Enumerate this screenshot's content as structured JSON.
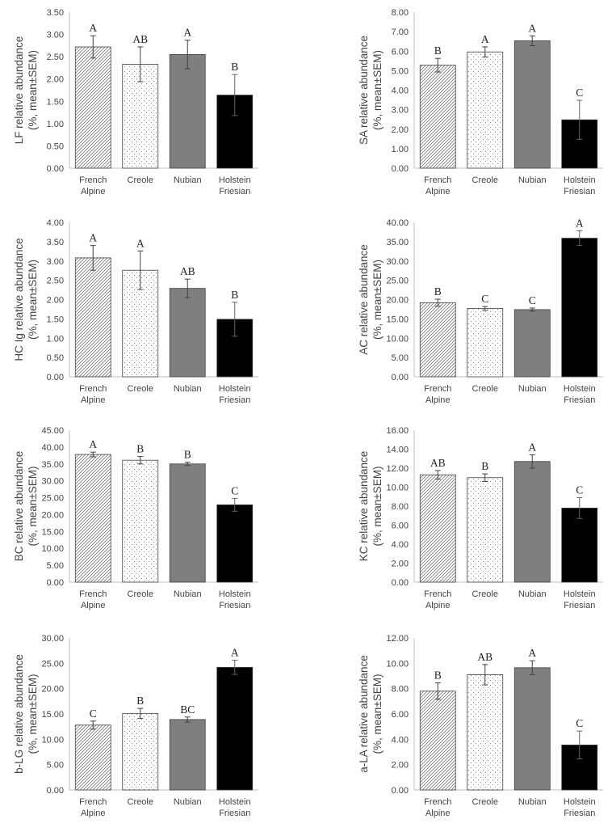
{
  "chart_data": [
    {
      "type": "bar",
      "ylabel_line1": "LF relative abundance",
      "ylabel_line2": "(%, mean±SEM)",
      "categories": [
        [
          "French",
          "Alpine"
        ],
        [
          "Creole"
        ],
        [
          "Nubian"
        ],
        [
          "Holstein",
          "Friesian"
        ]
      ],
      "values": [
        2.72,
        2.33,
        2.55,
        1.64
      ],
      "errors": [
        0.25,
        0.39,
        0.32,
        0.46
      ],
      "letters": [
        "A",
        "AB",
        "A",
        "B"
      ],
      "ylim": [
        0,
        3.5
      ],
      "yticks": [
        "0.00",
        "0.50",
        "1.00",
        "1.50",
        "2.00",
        "2.50",
        "3.00",
        "3.50"
      ],
      "patterns": [
        "hatch",
        "dots",
        "gray",
        "black"
      ]
    },
    {
      "type": "bar",
      "ylabel_line1": "SA relative abundance",
      "ylabel_line2": "(%, mean±SEM)",
      "categories": [
        [
          "French",
          "Alpine"
        ],
        [
          "Creole"
        ],
        [
          "Nubian"
        ],
        [
          "Holstein",
          "Friesian"
        ]
      ],
      "values": [
        5.28,
        5.96,
        6.53,
        2.48
      ],
      "errors": [
        0.35,
        0.26,
        0.25,
        1.0
      ],
      "letters": [
        "B",
        "A",
        "A",
        "C"
      ],
      "ylim": [
        0,
        8
      ],
      "yticks": [
        "0.00",
        "1.00",
        "2.00",
        "3.00",
        "4.00",
        "5.00",
        "6.00",
        "7.00",
        "8.00"
      ],
      "patterns": [
        "hatch",
        "dots",
        "gray",
        "black"
      ]
    },
    {
      "type": "bar",
      "ylabel_line1": "HC Ig relative abundance",
      "ylabel_line2": "(%, mean±SEM)",
      "categories": [
        [
          "French",
          "Alpine"
        ],
        [
          "Creole"
        ],
        [
          "Nubian"
        ],
        [
          "Holstein",
          "Friesian"
        ]
      ],
      "values": [
        3.08,
        2.76,
        2.29,
        1.49
      ],
      "errors": [
        0.32,
        0.5,
        0.24,
        0.44
      ],
      "letters": [
        "A",
        "A",
        "AB",
        "B"
      ],
      "ylim": [
        0,
        4
      ],
      "yticks": [
        "0.00",
        "0.50",
        "1.00",
        "1.50",
        "2.00",
        "2.50",
        "3.00",
        "3.50",
        "4.00"
      ],
      "patterns": [
        "hatch",
        "dots",
        "gray",
        "black"
      ]
    },
    {
      "type": "bar",
      "ylabel_line1": "AC relative abundance",
      "ylabel_line2": "(%, mean±SEM)",
      "categories": [
        [
          "French",
          "Alpine"
        ],
        [
          "Creole"
        ],
        [
          "Nubian"
        ],
        [
          "Holstein",
          "Friesian"
        ]
      ],
      "values": [
        19.2,
        17.7,
        17.4,
        35.9
      ],
      "errors": [
        0.9,
        0.5,
        0.4,
        1.9
      ],
      "letters": [
        "B",
        "C",
        "C",
        "A"
      ],
      "ylim": [
        0,
        40
      ],
      "yticks": [
        "0.00",
        "5.00",
        "10.00",
        "15.00",
        "20.00",
        "25.00",
        "30.00",
        "35.00",
        "40.00"
      ],
      "patterns": [
        "hatch",
        "dots",
        "gray",
        "black"
      ]
    },
    {
      "type": "bar",
      "ylabel_line1": "BC relative abundance",
      "ylabel_line2": "(%, mean±SEM)",
      "categories": [
        [
          "French",
          "Alpine"
        ],
        [
          "Creole"
        ],
        [
          "Nubian"
        ],
        [
          "Holstein",
          "Friesian"
        ]
      ],
      "values": [
        37.8,
        36.1,
        35.0,
        22.9
      ],
      "errors": [
        0.7,
        1.1,
        0.5,
        1.9
      ],
      "letters": [
        "A",
        "B",
        "B",
        "C"
      ],
      "ylim": [
        0,
        45
      ],
      "yticks": [
        "0.00",
        "5.00",
        "10.00",
        "15.00",
        "20.00",
        "25.00",
        "30.00",
        "35.00",
        "40.00",
        "45.00"
      ],
      "patterns": [
        "hatch",
        "dots",
        "gray",
        "black"
      ]
    },
    {
      "type": "bar",
      "ylabel_line1": "KC relative abundance",
      "ylabel_line2": "(%, mean±SEM)",
      "categories": [
        [
          "French",
          "Alpine"
        ],
        [
          "Creole"
        ],
        [
          "Nubian"
        ],
        [
          "Holstein",
          "Friesian"
        ]
      ],
      "values": [
        11.3,
        11.0,
        12.7,
        7.8
      ],
      "errors": [
        0.45,
        0.4,
        0.7,
        1.1
      ],
      "letters": [
        "AB",
        "B",
        "A",
        "C"
      ],
      "ylim": [
        0,
        16
      ],
      "yticks": [
        "0.00",
        "2.00",
        "4.00",
        "6.00",
        "8.00",
        "10.00",
        "12.00",
        "14.00",
        "16.00"
      ],
      "patterns": [
        "hatch",
        "dots",
        "gray",
        "black"
      ]
    },
    {
      "type": "bar",
      "ylabel_line1": "b-LG relative abundance",
      "ylabel_line2": "(%, mean±SEM)",
      "categories": [
        [
          "French",
          "Alpine"
        ],
        [
          "Creole"
        ],
        [
          "Nubian"
        ],
        [
          "Holstein",
          "Friesian"
        ]
      ],
      "values": [
        12.8,
        15.1,
        13.9,
        24.2
      ],
      "errors": [
        0.8,
        1.0,
        0.5,
        1.4
      ],
      "letters": [
        "C",
        "B",
        "BC",
        "A"
      ],
      "ylim": [
        0,
        30
      ],
      "yticks": [
        "0.00",
        "5.00",
        "10.00",
        "15.00",
        "20.00",
        "25.00",
        "30.00"
      ],
      "patterns": [
        "hatch",
        "dots",
        "gray",
        "black"
      ]
    },
    {
      "type": "bar",
      "ylabel_line1": "a-LA relative abundance",
      "ylabel_line2": "(%, mean±SEM)",
      "categories": [
        [
          "French",
          "Alpine"
        ],
        [
          "Creole"
        ],
        [
          "Nubian"
        ],
        [
          "Holstein",
          "Friesian"
        ]
      ],
      "values": [
        7.8,
        9.1,
        9.65,
        3.55
      ],
      "errors": [
        0.65,
        0.8,
        0.55,
        1.1
      ],
      "letters": [
        "B",
        "AB",
        "A",
        "C"
      ],
      "ylim": [
        0,
        12
      ],
      "yticks": [
        "0.00",
        "2.00",
        "4.00",
        "6.00",
        "8.00",
        "10.00",
        "12.00"
      ],
      "patterns": [
        "hatch",
        "dots",
        "gray",
        "black"
      ]
    }
  ],
  "colors": {
    "nubian": "#7f7f7f",
    "holstein": "#000000",
    "hatch": "#7a7a7a",
    "dots": "#8a8a8a",
    "axis": "#bfbfbf",
    "outline": "#404040",
    "errorbar": "#404040"
  }
}
